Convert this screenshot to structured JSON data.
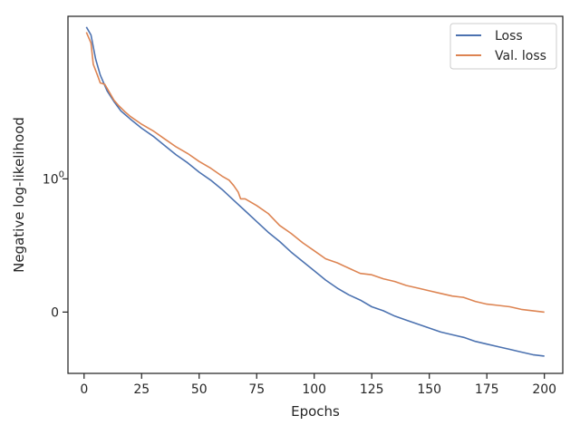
{
  "chart_data": {
    "type": "line",
    "title": "",
    "xlabel": "Epochs",
    "ylabel": "Negative log-likelihood",
    "xlim": [
      -7,
      208
    ],
    "ylim": [
      -0.46,
      2.22
    ],
    "x_ticks": [
      0,
      25,
      50,
      75,
      100,
      125,
      150,
      175,
      200
    ],
    "y_ticks": [
      {
        "value": 0,
        "label": "0"
      },
      {
        "value": 1,
        "label": "10",
        "sup": "0"
      }
    ],
    "grid": false,
    "legend_position": "top-right",
    "series": [
      {
        "name": "Loss",
        "color": "#4c72b0",
        "points": [
          [
            1,
            2.14
          ],
          [
            3,
            2.08
          ],
          [
            5,
            1.9
          ],
          [
            7,
            1.78
          ],
          [
            10,
            1.66
          ],
          [
            13,
            1.58
          ],
          [
            16,
            1.51
          ],
          [
            20,
            1.45
          ],
          [
            25,
            1.38
          ],
          [
            30,
            1.32
          ],
          [
            35,
            1.25
          ],
          [
            40,
            1.18
          ],
          [
            45,
            1.12
          ],
          [
            50,
            1.05
          ],
          [
            55,
            0.99
          ],
          [
            60,
            0.92
          ],
          [
            65,
            0.84
          ],
          [
            70,
            0.76
          ],
          [
            75,
            0.68
          ],
          [
            80,
            0.6
          ],
          [
            85,
            0.53
          ],
          [
            90,
            0.45
          ],
          [
            95,
            0.38
          ],
          [
            100,
            0.31
          ],
          [
            105,
            0.24
          ],
          [
            110,
            0.18
          ],
          [
            115,
            0.13
          ],
          [
            120,
            0.09
          ],
          [
            125,
            0.04
          ],
          [
            130,
            0.01
          ],
          [
            135,
            -0.03
          ],
          [
            140,
            -0.06
          ],
          [
            145,
            -0.09
          ],
          [
            150,
            -0.12
          ],
          [
            155,
            -0.15
          ],
          [
            160,
            -0.17
          ],
          [
            165,
            -0.19
          ],
          [
            170,
            -0.22
          ],
          [
            175,
            -0.24
          ],
          [
            180,
            -0.26
          ],
          [
            185,
            -0.28
          ],
          [
            190,
            -0.3
          ],
          [
            195,
            -0.32
          ],
          [
            200,
            -0.33
          ]
        ]
      },
      {
        "name": "Val. loss",
        "color": "#dd8452",
        "points": [
          [
            1,
            2.1
          ],
          [
            3,
            2.02
          ],
          [
            4,
            1.86
          ],
          [
            6,
            1.77
          ],
          [
            7,
            1.72
          ],
          [
            9,
            1.71
          ],
          [
            11,
            1.65
          ],
          [
            13,
            1.59
          ],
          [
            15,
            1.55
          ],
          [
            18,
            1.5
          ],
          [
            20,
            1.47
          ],
          [
            25,
            1.41
          ],
          [
            30,
            1.36
          ],
          [
            35,
            1.3
          ],
          [
            40,
            1.24
          ],
          [
            45,
            1.19
          ],
          [
            50,
            1.13
          ],
          [
            55,
            1.08
          ],
          [
            60,
            1.02
          ],
          [
            63,
            0.99
          ],
          [
            65,
            0.95
          ],
          [
            67,
            0.9
          ],
          [
            68,
            0.85
          ],
          [
            70,
            0.85
          ],
          [
            75,
            0.8
          ],
          [
            80,
            0.74
          ],
          [
            85,
            0.65
          ],
          [
            90,
            0.59
          ],
          [
            95,
            0.52
          ],
          [
            100,
            0.46
          ],
          [
            105,
            0.4
          ],
          [
            110,
            0.37
          ],
          [
            115,
            0.33
          ],
          [
            120,
            0.29
          ],
          [
            125,
            0.28
          ],
          [
            130,
            0.25
          ],
          [
            135,
            0.23
          ],
          [
            140,
            0.2
          ],
          [
            145,
            0.18
          ],
          [
            150,
            0.16
          ],
          [
            155,
            0.14
          ],
          [
            160,
            0.12
          ],
          [
            165,
            0.11
          ],
          [
            170,
            0.08
          ],
          [
            175,
            0.06
          ],
          [
            180,
            0.05
          ],
          [
            185,
            0.04
          ],
          [
            190,
            0.02
          ],
          [
            195,
            0.01
          ],
          [
            200,
            0.0
          ]
        ]
      }
    ]
  }
}
